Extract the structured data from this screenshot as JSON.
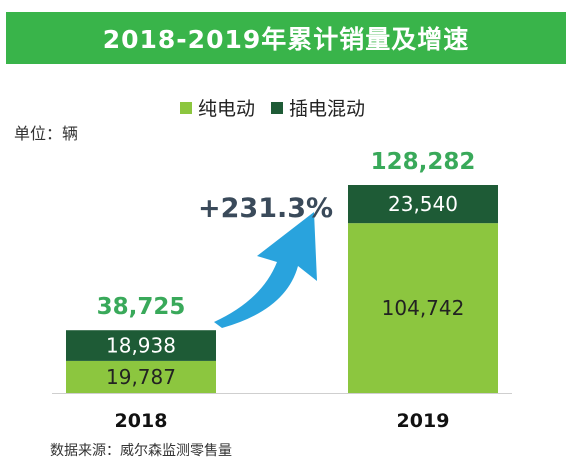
{
  "title": "2018-2019年累计销量及增速",
  "unit_label": "单位：辆",
  "source": "数据来源：威尔森监测零售量",
  "growth_label": "+231.3%",
  "colors": {
    "title_bg": "#39b44a",
    "bev": "#8cc63f",
    "phev": "#1e5b36",
    "total_text": "#39a95a",
    "arrow": "#29a3dd"
  },
  "chart_data": {
    "type": "bar",
    "stacked": true,
    "categories": [
      "2018",
      "2019"
    ],
    "series": [
      {
        "name": "纯电动",
        "values": [
          19787,
          104742
        ]
      },
      {
        "name": "插电混动",
        "values": [
          18938,
          23540
        ]
      }
    ],
    "totals": [
      38725,
      128282
    ],
    "value_labels": {
      "bev": [
        "19,787",
        "104,742"
      ],
      "phev": [
        "18,938",
        "23,540"
      ],
      "totals": [
        "38,725",
        "128,282"
      ]
    },
    "legend_position": "top-center",
    "ylim": [
      0,
      160000
    ],
    "grid": false,
    "xlabel": "",
    "ylabel": ""
  }
}
